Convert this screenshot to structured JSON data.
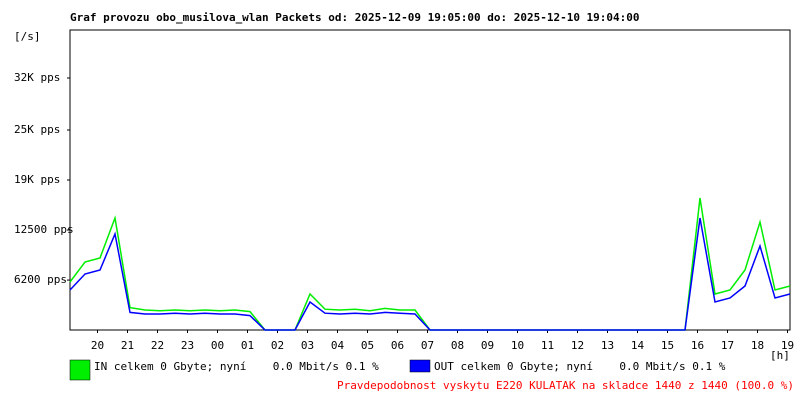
{
  "chart_data": {
    "type": "line",
    "title": "Graf provozu obo_musilova_wlan Packets od: 2025-12-09 19:05:00 do: 2025-12-10 19:04:00",
    "y_label": "[/s]",
    "x_label": "[h]",
    "xlim": [
      0,
      24
    ],
    "xticks": [
      {
        "value": 0.9167,
        "label": "20"
      },
      {
        "value": 1.9167,
        "label": "21"
      },
      {
        "value": 2.9167,
        "label": "22"
      },
      {
        "value": 3.9167,
        "label": "23"
      },
      {
        "value": 4.9167,
        "label": "00"
      },
      {
        "value": 5.9167,
        "label": "01"
      },
      {
        "value": 6.9167,
        "label": "02"
      },
      {
        "value": 7.9167,
        "label": "03"
      },
      {
        "value": 8.9167,
        "label": "04"
      },
      {
        "value": 9.9167,
        "label": "05"
      },
      {
        "value": 10.9167,
        "label": "06"
      },
      {
        "value": 11.9167,
        "label": "07"
      },
      {
        "value": 12.9167,
        "label": "08"
      },
      {
        "value": 13.9167,
        "label": "09"
      },
      {
        "value": 14.9167,
        "label": "10"
      },
      {
        "value": 15.9167,
        "label": "11"
      },
      {
        "value": 16.9167,
        "label": "12"
      },
      {
        "value": 17.9167,
        "label": "13"
      },
      {
        "value": 18.9167,
        "label": "14"
      },
      {
        "value": 19.9167,
        "label": "15"
      },
      {
        "value": 20.9167,
        "label": "16"
      },
      {
        "value": 21.9167,
        "label": "17"
      },
      {
        "value": 22.9167,
        "label": "18"
      },
      {
        "value": 23.9167,
        "label": "19"
      }
    ],
    "ylim": [
      0,
      37500
    ],
    "yticks": [
      {
        "value": 6240,
        "label": "6200 pps"
      },
      {
        "value": 12500,
        "label": "12500 pps"
      },
      {
        "value": 18750,
        "label": "19K pps"
      },
      {
        "value": 25000,
        "label": "25K pps"
      },
      {
        "value": 31500,
        "label": "32K pps"
      }
    ],
    "x": [
      0,
      0.5,
      1,
      1.5,
      2,
      2.5,
      3,
      3.5,
      4,
      4.5,
      5,
      5.5,
      6,
      6.5,
      7,
      7.5,
      8,
      8.5,
      9,
      9.5,
      10,
      10.5,
      11,
      11.5,
      12,
      12.5,
      13,
      13.5,
      14,
      14.5,
      15,
      15.5,
      16,
      16.5,
      17,
      17.5,
      18,
      18.5,
      19,
      19.5,
      20,
      20.5,
      21,
      21.5,
      22,
      22.5,
      23,
      23.5,
      24
    ],
    "series": [
      {
        "name": "IN celkem 0 Gbyte; nyní    0.0 Mbit/s 0.1 %",
        "color": "#00ee00",
        "values": [
          6000,
          8500,
          9000,
          14000,
          2800,
          2500,
          2400,
          2500,
          2400,
          2500,
          2400,
          2500,
          2300,
          0,
          0,
          0,
          4500,
          2600,
          2500,
          2600,
          2400,
          2700,
          2500,
          2500,
          0,
          0,
          0,
          0,
          0,
          0,
          0,
          0,
          0,
          0,
          0,
          0,
          0,
          0,
          0,
          0,
          0,
          0,
          16500,
          4500,
          5000,
          7500,
          13500,
          5000,
          5500
        ]
      },
      {
        "name": "OUT celkem 0 Gbyte; nyní    0.0 Mbit/s 0.1 %",
        "color": "#0000ff",
        "values": [
          5000,
          7000,
          7500,
          12000,
          2200,
          2000,
          2000,
          2100,
          2000,
          2100,
          2000,
          2000,
          1800,
          0,
          0,
          0,
          3500,
          2100,
          2000,
          2100,
          2000,
          2200,
          2100,
          2000,
          0,
          0,
          0,
          0,
          0,
          0,
          0,
          0,
          0,
          0,
          0,
          0,
          0,
          0,
          0,
          0,
          0,
          0,
          14000,
          3500,
          4000,
          5500,
          10500,
          4000,
          4500
        ]
      }
    ],
    "note": "Pravdepodobnost vyskytu E220 KULATAK na skladce 1440 z 1440 (100.0 %)"
  }
}
